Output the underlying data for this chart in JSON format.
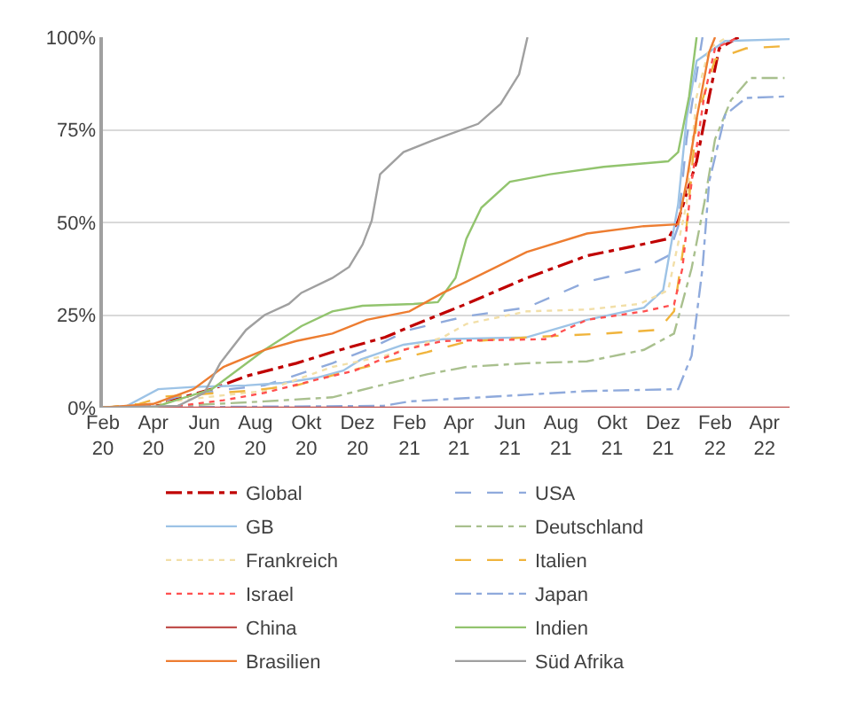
{
  "chart_data": {
    "type": "line",
    "xlim": [
      "2020-02-01",
      "2022-05-01"
    ],
    "xticks": [
      {
        "value": "2020-02-01",
        "label": "Feb\n20"
      },
      {
        "value": "2020-04-01",
        "label": "Apr\n20"
      },
      {
        "value": "2020-06-01",
        "label": "Jun\n20"
      },
      {
        "value": "2020-08-01",
        "label": "Aug\n20"
      },
      {
        "value": "2020-10-01",
        "label": "Okt\n20"
      },
      {
        "value": "2020-12-01",
        "label": "Dez\n20"
      },
      {
        "value": "2021-02-01",
        "label": "Feb\n21"
      },
      {
        "value": "2021-04-01",
        "label": "Apr\n21"
      },
      {
        "value": "2021-06-01",
        "label": "Jun\n21"
      },
      {
        "value": "2021-08-01",
        "label": "Aug\n21"
      },
      {
        "value": "2021-10-01",
        "label": "Okt\n21"
      },
      {
        "value": "2021-12-01",
        "label": "Dez\n21"
      },
      {
        "value": "2022-02-01",
        "label": "Feb\n22"
      },
      {
        "value": "2022-04-01",
        "label": "Apr\n22"
      }
    ],
    "ylim": [
      0,
      100
    ],
    "yticks": [
      {
        "value": 0,
        "label": "0%"
      },
      {
        "value": 25,
        "label": "25%"
      },
      {
        "value": 50,
        "label": "50%"
      },
      {
        "value": 75,
        "label": "75%"
      },
      {
        "value": 100,
        "label": "100%"
      }
    ],
    "grid": "y",
    "legend": "bottom",
    "marker": "none",
    "series": [
      {
        "name": "Global",
        "color": "#c00000",
        "line_style": "dashdot",
        "x": [
          "2020-02-01",
          "2020-04-01",
          "2020-06-10",
          "2020-07-21",
          "2020-09-19",
          "2020-11-01",
          "2021-01-03",
          "2021-02-03",
          "2021-04-10",
          "2021-06-21",
          "2021-09-01",
          "2021-10-25",
          "2021-12-07",
          "2021-12-19",
          "2022-01-10",
          "2022-01-25",
          "2022-02-06",
          "2022-03-01"
        ],
        "values": [
          0,
          0.5,
          5,
          8.5,
          12,
          15,
          19,
          22,
          28,
          35,
          41,
          43.5,
          45.6,
          50.5,
          66.5,
          84,
          97,
          100
        ]
      },
      {
        "name": "USA",
        "color": "#8faadc",
        "line_style": "dashed",
        "x": [
          "2020-02-01",
          "2020-04-01",
          "2020-05-01",
          "2020-07-01",
          "2020-08-12",
          "2020-11-01",
          "2020-12-12",
          "2021-02-01",
          "2021-04-10",
          "2021-06-21",
          "2021-09-01",
          "2021-11-08",
          "2021-12-07",
          "2021-12-19",
          "2021-12-29",
          "2022-01-10",
          "2022-01-17"
        ],
        "values": [
          0,
          1,
          3,
          5,
          6,
          12,
          15.6,
          21,
          24.7,
          27,
          34,
          37.6,
          41,
          49,
          72.5,
          90,
          100
        ]
      },
      {
        "name": "GB",
        "color": "#9dc3e6",
        "line_style": "solid",
        "x": [
          "2020-02-01",
          "2020-03-01",
          "2020-04-07",
          "2020-05-19",
          "2020-07-21",
          "2020-09-03",
          "2020-10-12",
          "2020-11-14",
          "2020-12-05",
          "2021-01-25",
          "2021-03-13",
          "2021-06-21",
          "2021-09-01",
          "2021-11-08",
          "2021-12-01",
          "2021-12-19",
          "2021-12-29",
          "2022-01-10",
          "2022-02-13",
          "2022-05-01"
        ],
        "values": [
          0,
          0.5,
          5,
          5.6,
          6,
          6.7,
          8,
          10,
          13,
          17,
          18.5,
          19,
          23.7,
          27,
          31.7,
          55,
          78,
          93.6,
          99,
          99.5
        ]
      },
      {
        "name": "Deutschland",
        "color": "#a9c08e",
        "line_style": "dashdot",
        "x": [
          "2020-02-01",
          "2020-05-01",
          "2020-08-12",
          "2020-11-01",
          "2020-12-28",
          "2021-02-22",
          "2021-04-10",
          "2021-06-21",
          "2021-09-01",
          "2021-11-08",
          "2021-12-14",
          "2022-01-04",
          "2022-01-19",
          "2022-02-01",
          "2022-02-20",
          "2022-03-15",
          "2022-04-25"
        ],
        "values": [
          0,
          0.5,
          1.7,
          2.8,
          6,
          9,
          11,
          12,
          12.5,
          15.6,
          20,
          37.6,
          55,
          72.5,
          83,
          89,
          89
        ]
      },
      {
        "name": "Frankreich",
        "color": "#f2dfa8",
        "line_style": "dotted",
        "x": [
          "2020-02-01",
          "2020-04-01",
          "2020-06-10",
          "2020-08-12",
          "2020-11-01",
          "2021-01-03",
          "2021-03-13",
          "2021-04-10",
          "2021-06-21",
          "2021-09-01",
          "2021-11-03",
          "2021-12-07",
          "2021-12-29",
          "2022-01-10",
          "2022-01-25",
          "2022-02-15"
        ],
        "values": [
          0,
          1,
          3,
          4.5,
          11,
          14,
          19,
          22.6,
          26,
          26.5,
          28,
          31.7,
          55,
          84,
          97,
          100
        ]
      },
      {
        "name": "Italien",
        "color": "#f0b43c",
        "line_style": "dashed",
        "x": [
          "2020-02-01",
          "2020-03-15",
          "2020-04-15",
          "2020-05-19",
          "2020-07-21",
          "2020-09-19",
          "2020-11-01",
          "2020-12-28",
          "2021-02-22",
          "2021-04-10",
          "2021-06-21",
          "2021-09-21",
          "2021-11-25",
          "2021-12-14",
          "2021-12-29",
          "2022-01-10",
          "2022-02-01",
          "2022-03-10",
          "2022-04-25"
        ],
        "values": [
          0,
          1,
          3,
          3.5,
          4.5,
          6,
          8.7,
          12,
          15,
          17.8,
          19,
          20,
          21,
          26,
          49,
          78,
          94,
          97,
          97.6
        ]
      },
      {
        "name": "Israel",
        "color": "#ff5050",
        "line_style": "dotted",
        "x": [
          "2020-02-01",
          "2020-05-01",
          "2020-06-24",
          "2020-08-12",
          "2020-10-12",
          "2020-11-28",
          "2021-01-25",
          "2021-03-13",
          "2021-07-13",
          "2021-09-01",
          "2021-11-08",
          "2021-12-14",
          "2021-12-24",
          "2022-01-04",
          "2022-01-19",
          "2022-02-01",
          "2022-03-01"
        ],
        "values": [
          0,
          0.5,
          2,
          4,
          7.5,
          10,
          15.6,
          18,
          18.5,
          23.7,
          26,
          27.8,
          37.6,
          61,
          84,
          97,
          100
        ]
      },
      {
        "name": "Japan",
        "color": "#8faadc",
        "line_style": "dashdot",
        "x": [
          "2020-02-01",
          "2021-01-01",
          "2021-02-01",
          "2021-06-21",
          "2021-09-01",
          "2021-12-19",
          "2022-01-04",
          "2022-01-17",
          "2022-01-25",
          "2022-02-13",
          "2022-03-10",
          "2022-04-25"
        ],
        "values": [
          0,
          0.5,
          1.7,
          3.5,
          4.5,
          5,
          14,
          37.6,
          61,
          79,
          83.6,
          84
        ]
      },
      {
        "name": "China",
        "color": "#c0504d",
        "line_style": "solid",
        "x": [
          "2020-02-01",
          "2022-05-01"
        ],
        "values": [
          0,
          0
        ]
      },
      {
        "name": "Indien",
        "color": "#92c46e",
        "line_style": "solid",
        "x": [
          "2020-02-01",
          "2020-04-01",
          "2020-04-28",
          "2020-06-10",
          "2020-08-12",
          "2020-09-25",
          "2020-11-01",
          "2020-12-07",
          "2021-02-06",
          "2021-03-07",
          "2021-03-28",
          "2021-04-10",
          "2021-04-28",
          "2021-06-01",
          "2021-07-19",
          "2021-09-21",
          "2021-12-07",
          "2021-12-19",
          "2022-01-01",
          "2022-01-10"
        ],
        "values": [
          0,
          0,
          2,
          5,
          15.6,
          22,
          26,
          27.5,
          28,
          28.5,
          35,
          45.6,
          54,
          61,
          63,
          65,
          66.5,
          69,
          84,
          100
        ]
      },
      {
        "name": "Brasilien",
        "color": "#ed7d31",
        "line_style": "solid",
        "x": [
          "2020-02-01",
          "2020-04-01",
          "2020-05-19",
          "2020-06-24",
          "2020-08-12",
          "2020-09-19",
          "2020-11-01",
          "2020-12-12",
          "2021-02-01",
          "2021-03-13",
          "2021-04-10",
          "2021-06-21",
          "2021-09-01",
          "2021-11-08",
          "2021-12-19",
          "2021-12-29",
          "2022-01-10",
          "2022-01-25",
          "2022-02-01"
        ],
        "values": [
          0,
          1,
          5,
          11,
          15.6,
          18,
          20,
          23.7,
          26,
          31,
          34,
          42,
          47,
          49,
          49.5,
          61,
          78,
          96,
          100
        ]
      },
      {
        "name": "Süd Afrika",
        "color": "#a0a0a0",
        "line_style": "solid",
        "x": [
          "2020-02-01",
          "2020-05-01",
          "2020-06-01",
          "2020-06-20",
          "2020-07-21",
          "2020-08-12",
          "2020-09-10",
          "2020-09-25",
          "2020-11-01",
          "2020-11-21",
          "2020-12-07",
          "2020-12-18",
          "2020-12-28",
          "2021-01-25",
          "2021-02-27",
          "2021-04-24",
          "2021-05-21",
          "2021-06-12",
          "2021-06-22"
        ],
        "values": [
          0,
          0.5,
          4,
          12,
          21,
          25,
          28,
          31,
          35,
          38,
          44,
          50.5,
          63,
          69,
          72,
          76.6,
          82,
          90,
          100
        ]
      }
    ]
  }
}
